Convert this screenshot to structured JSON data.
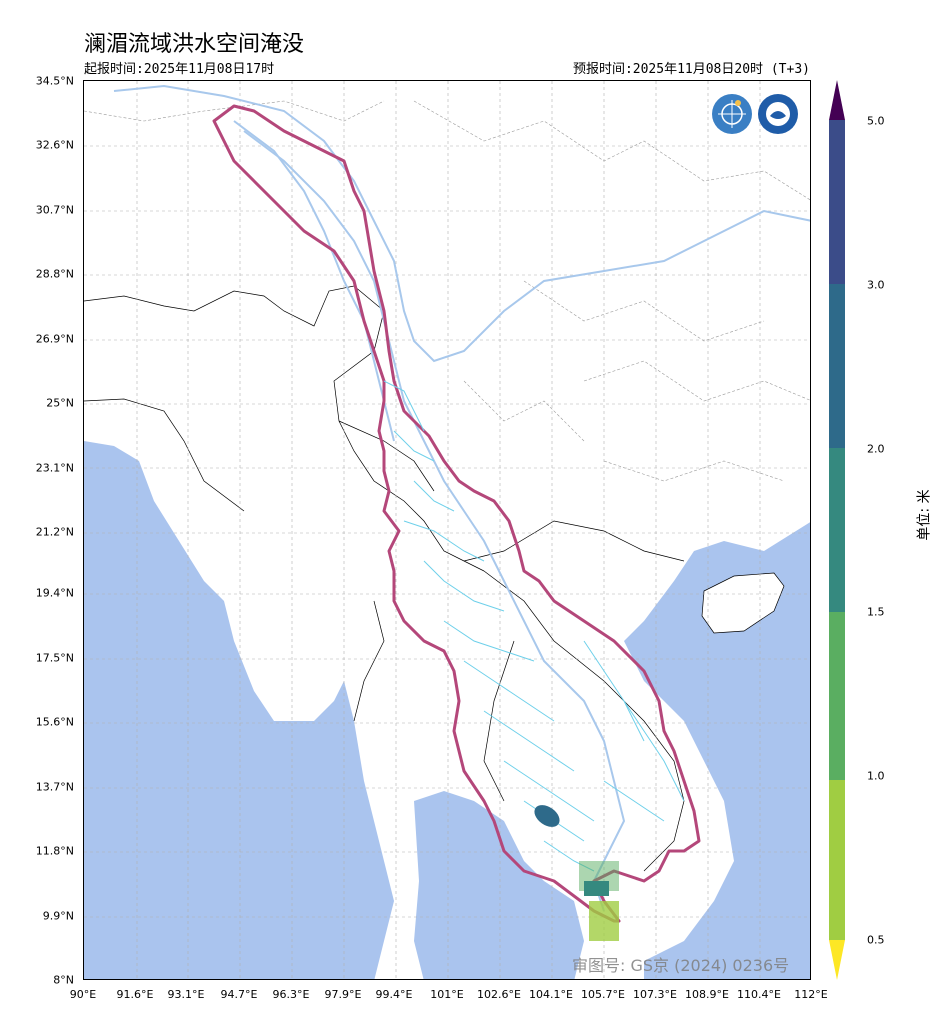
{
  "header": {
    "title": "澜湄流域洪水空间淹没",
    "issue_time": "起报时间:2025年11月08日17时",
    "forecast_time": "预报时间:2025年11月08日20时 (T+3)"
  },
  "axes": {
    "lat_labels": [
      "34.5°N",
      "32.6°N",
      "30.7°N",
      "28.8°N",
      "26.9°N",
      "25°N",
      "23.1°N",
      "21.2°N",
      "19.4°N",
      "17.5°N",
      "15.6°N",
      "13.7°N",
      "11.8°N",
      "9.9°N",
      "8°N"
    ],
    "lon_labels": [
      "90°E",
      "91.6°E",
      "93.1°E",
      "94.7°E",
      "96.3°E",
      "97.9°E",
      "99.4°E",
      "101°E",
      "102.6°E",
      "104.1°E",
      "105.7°E",
      "107.3°E",
      "108.9°E",
      "110.4°E",
      "112°E"
    ]
  },
  "colorbar": {
    "unit": "单位: 米",
    "labels": [
      "5.0",
      "3.0",
      "2.0",
      "1.5",
      "1.0",
      "0.5"
    ],
    "colors": [
      "#fde725",
      "#a0cd42",
      "#5aae61",
      "#35897f",
      "#2e6a8a",
      "#3b4c89",
      "#3d2f75",
      "#440154"
    ]
  },
  "colors": {
    "sea": "#aac4ee",
    "land": "#ffffff",
    "basin_outline": "#b4477a",
    "river_major": "#a8c8ec",
    "river_minor": "#6ed0ea"
  },
  "watermark": "审图号: GS京 (2024) 0236号",
  "logos": [
    "wmo-logo-icon",
    "cma-logo-icon"
  ]
}
